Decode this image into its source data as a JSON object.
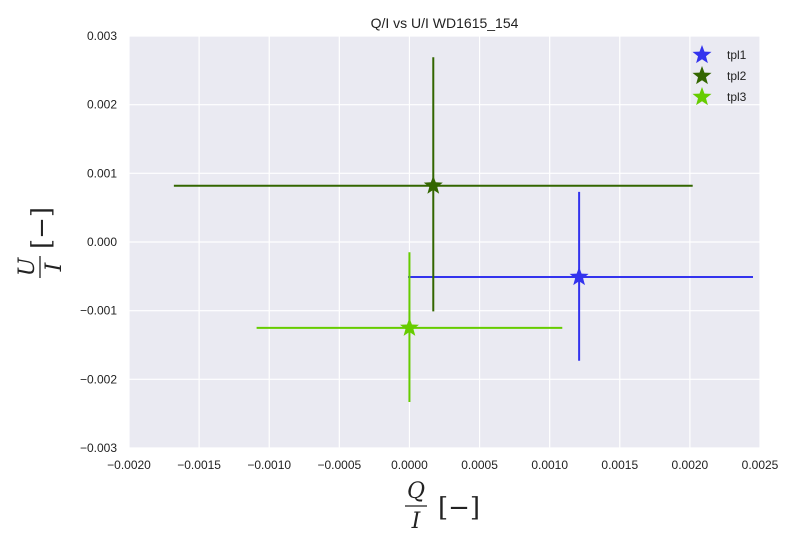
{
  "chart_data": {
    "type": "scatter",
    "title": "Q/I vs U/I WD1615_154",
    "xlabel": {
      "numerator": "Q",
      "denominator": "I",
      "unit": "[−]"
    },
    "ylabel": {
      "numerator": "U",
      "denominator": "I",
      "unit": "[−]"
    },
    "xlim": [
      -0.002,
      0.0025
    ],
    "ylim": [
      -0.003,
      0.003
    ],
    "x_ticks": [
      -0.002,
      -0.0015,
      -0.001,
      -0.0005,
      0.0,
      0.0005,
      0.001,
      0.0015,
      0.002,
      0.0025
    ],
    "x_tick_labels": [
      "−0.0020",
      "−0.0015",
      "−0.0010",
      "−0.0005",
      "0.0000",
      "0.0005",
      "0.0010",
      "0.0015",
      "0.0020",
      "0.0025"
    ],
    "y_ticks": [
      -0.003,
      -0.002,
      -0.001,
      0.0,
      0.001,
      0.002,
      0.003
    ],
    "y_tick_labels": [
      "−0.003",
      "−0.002",
      "−0.001",
      "0.000",
      "0.001",
      "0.002",
      "0.003"
    ],
    "grid": true,
    "background": "#eaeaf2",
    "legend_position": "top-right",
    "series": [
      {
        "name": "tpl1",
        "color": "#3333ee",
        "x": 0.00121,
        "y": -0.00051,
        "xerr": [
          0.00122,
          0.00124
        ],
        "yerr": [
          0.00122,
          0.00124
        ]
      },
      {
        "name": "tpl2",
        "color": "#336600",
        "x": 0.00017,
        "y": 0.00082,
        "xerr": [
          0.00185,
          0.00185
        ],
        "yerr": [
          0.00183,
          0.00187
        ]
      },
      {
        "name": "tpl3",
        "color": "#66cc00",
        "x": 0.0,
        "y": -0.00125,
        "xerr": [
          0.00109,
          0.00109
        ],
        "yerr": [
          0.00108,
          0.0011
        ]
      }
    ]
  }
}
